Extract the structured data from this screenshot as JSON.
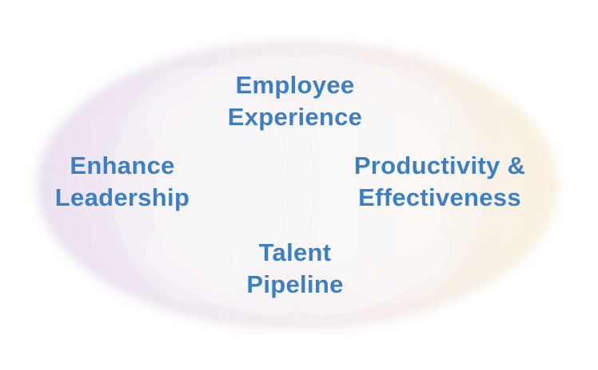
{
  "diagram": {
    "colors": {
      "text": "#3d7fc1",
      "ellipse_left": "#ece3f2",
      "ellipse_right": "#f8f0e0",
      "petals": "#ffffff"
    },
    "nodes": {
      "top": {
        "line1": "Employee",
        "line2": "Experience"
      },
      "left": {
        "line1": "Enhance",
        "line2": "Leadership"
      },
      "right": {
        "line1": "Productivity &",
        "line2": "Effectiveness"
      },
      "bottom": {
        "line1": "Talent",
        "line2": "Pipeline"
      }
    }
  }
}
